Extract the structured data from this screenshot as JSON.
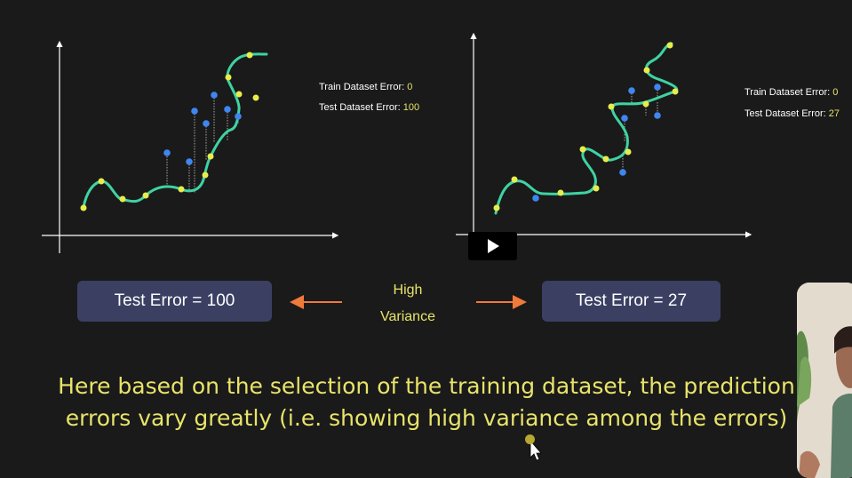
{
  "left_panel": {
    "train_label": "Train Dataset Error:",
    "train_value": "0",
    "test_label": "Test Dataset Error:",
    "test_value": "100"
  },
  "right_panel": {
    "train_label": "Train Dataset Error:",
    "train_value": "0",
    "test_label": "Test Dataset Error:",
    "test_value": "27"
  },
  "left_box": "Test Error = 100",
  "right_box": "Test Error = 27",
  "middle": {
    "line1": "High",
    "line2": "Variance"
  },
  "caption": "Here based on the selection of the training dataset, the prediction errors vary greatly (i.e. showing high variance among the errors)",
  "colors": {
    "background": "#1a1a1a",
    "curve": "#3fd3a3",
    "train_point": "#e8ec4c",
    "test_point": "#3f86f0",
    "box": "#3b4063",
    "arrow": "#f07a3a",
    "text_accent": "#e8e36a"
  },
  "icons": {
    "play": "play-icon",
    "cursor": "mouse-pointer-icon"
  }
}
